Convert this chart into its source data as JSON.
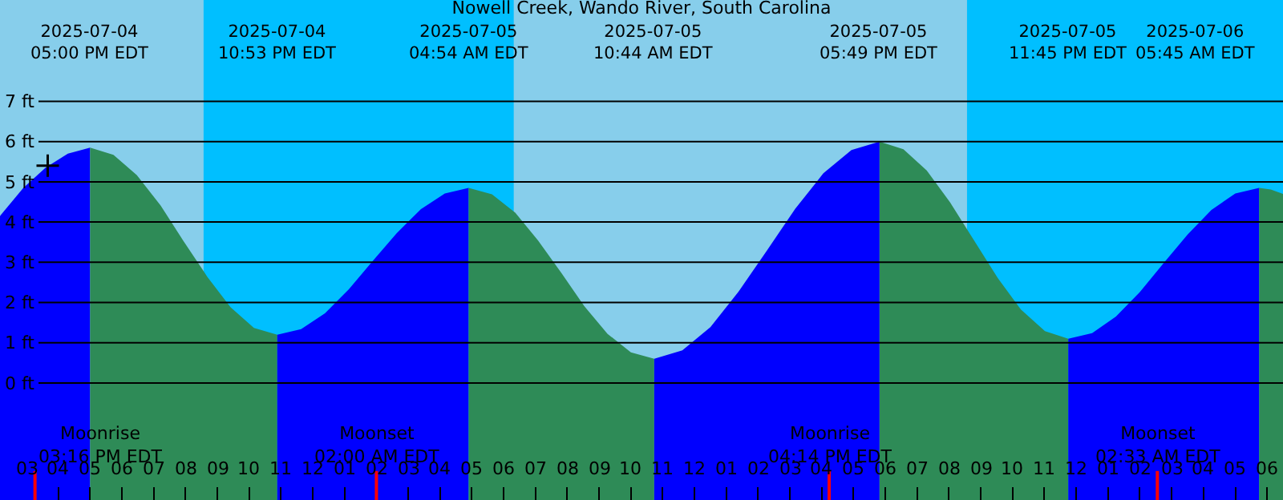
{
  "chart_data": {
    "type": "area",
    "title": "Nowell Creek, Wando River, South Carolina",
    "xlim": [
      "2025-07-04T14:10",
      "2025-07-06T06:30"
    ],
    "ylim": [
      -2.91,
      9.52
    ],
    "xticks": [
      {
        "value": "2025-07-04T15:00",
        "label": "03"
      },
      {
        "value": "2025-07-04T16:00",
        "label": "04"
      },
      {
        "value": "2025-07-04T17:00",
        "label": "05"
      },
      {
        "value": "2025-07-04T18:00",
        "label": "06"
      },
      {
        "value": "2025-07-04T19:00",
        "label": "07"
      },
      {
        "value": "2025-07-04T20:00",
        "label": "08"
      },
      {
        "value": "2025-07-04T21:00",
        "label": "09"
      },
      {
        "value": "2025-07-04T22:00",
        "label": "10"
      },
      {
        "value": "2025-07-04T23:00",
        "label": "11"
      },
      {
        "value": "2025-07-05T00:00",
        "label": "12"
      },
      {
        "value": "2025-07-05T01:00",
        "label": "01"
      },
      {
        "value": "2025-07-05T02:00",
        "label": "02"
      },
      {
        "value": "2025-07-05T03:00",
        "label": "03"
      },
      {
        "value": "2025-07-05T04:00",
        "label": "04"
      },
      {
        "value": "2025-07-05T05:00",
        "label": "05"
      },
      {
        "value": "2025-07-05T06:00",
        "label": "06"
      },
      {
        "value": "2025-07-05T07:00",
        "label": "07"
      },
      {
        "value": "2025-07-05T08:00",
        "label": "08"
      },
      {
        "value": "2025-07-05T09:00",
        "label": "09"
      },
      {
        "value": "2025-07-05T10:00",
        "label": "10"
      },
      {
        "value": "2025-07-05T11:00",
        "label": "11"
      },
      {
        "value": "2025-07-05T12:00",
        "label": "12"
      },
      {
        "value": "2025-07-05T13:00",
        "label": "01"
      },
      {
        "value": "2025-07-05T14:00",
        "label": "02"
      },
      {
        "value": "2025-07-05T15:00",
        "label": "03"
      },
      {
        "value": "2025-07-05T16:00",
        "label": "04"
      },
      {
        "value": "2025-07-05T17:00",
        "label": "05"
      },
      {
        "value": "2025-07-05T18:00",
        "label": "06"
      },
      {
        "value": "2025-07-05T19:00",
        "label": "07"
      },
      {
        "value": "2025-07-05T20:00",
        "label": "08"
      },
      {
        "value": "2025-07-05T21:00",
        "label": "09"
      },
      {
        "value": "2025-07-05T22:00",
        "label": "10"
      },
      {
        "value": "2025-07-05T23:00",
        "label": "11"
      },
      {
        "value": "2025-07-06T00:00",
        "label": "12"
      },
      {
        "value": "2025-07-06T01:00",
        "label": "01"
      },
      {
        "value": "2025-07-06T02:00",
        "label": "02"
      },
      {
        "value": "2025-07-06T03:00",
        "label": "03"
      },
      {
        "value": "2025-07-06T04:00",
        "label": "04"
      },
      {
        "value": "2025-07-06T05:00",
        "label": "05"
      },
      {
        "value": "2025-07-06T06:00",
        "label": "06"
      }
    ],
    "yticks": [
      {
        "value": 0,
        "label": "0 ft"
      },
      {
        "value": 1,
        "label": "1 ft"
      },
      {
        "value": 2,
        "label": "2 ft"
      },
      {
        "value": 3,
        "label": "3 ft"
      },
      {
        "value": 4,
        "label": "4 ft"
      },
      {
        "value": 5,
        "label": "5 ft"
      },
      {
        "value": 6,
        "label": "6 ft"
      },
      {
        "value": 7,
        "label": "7 ft"
      }
    ],
    "grid": "y",
    "bands": [
      {
        "axis": "x",
        "from": "2025-07-04T20:34",
        "to": "2025-07-05T06:19",
        "color": "#00bfff"
      },
      {
        "axis": "x",
        "from": "2025-07-05T20:34",
        "to": "2025-07-06T06:30",
        "color": "#00bfff"
      }
    ],
    "ref_lines": [
      {
        "axis": "x",
        "value": "2025-07-04T15:16",
        "label": "Moonrise\n03:16 PM EDT",
        "color": "#ff0000"
      },
      {
        "axis": "x",
        "value": "2025-07-05T02:00",
        "label": "Moonset\n02:00 AM EDT",
        "color": "#ff0000"
      },
      {
        "axis": "x",
        "value": "2025-07-05T16:14",
        "label": "Moonrise\n04:14 PM EDT",
        "color": "#ff0000"
      },
      {
        "axis": "x",
        "value": "2025-07-06T02:33",
        "label": "Moonset\n02:33 AM EDT",
        "color": "#ff0000"
      }
    ],
    "series": [
      {
        "color": "#0000ff",
        "x": [
          "2025-07-04T14:10",
          "2025-07-04T14:54",
          "2025-07-04T15:36",
          "2025-07-04T16:18",
          "2025-07-04T17:00"
        ],
        "values": [
          4.15,
          4.85,
          5.35,
          5.7,
          5.85
        ]
      },
      {
        "color": "#2e8b57",
        "x": [
          "2025-07-04T17:00",
          "2025-07-04T17:44",
          "2025-07-04T18:28",
          "2025-07-04T19:13",
          "2025-07-04T19:56",
          "2025-07-04T20:41",
          "2025-07-04T21:25",
          "2025-07-04T22:09",
          "2025-07-04T22:53"
        ],
        "values": [
          5.85,
          5.67,
          5.17,
          4.41,
          3.53,
          2.64,
          1.88,
          1.37,
          1.2
        ]
      },
      {
        "color": "#0000ff",
        "x": [
          "2025-07-04T22:53",
          "2025-07-04T23:38",
          "2025-07-05T00:23",
          "2025-07-05T01:08",
          "2025-07-05T01:53",
          "2025-07-05T02:38",
          "2025-07-05T03:24",
          "2025-07-05T04:09",
          "2025-07-05T04:54"
        ],
        "values": [
          1.2,
          1.34,
          1.73,
          2.33,
          3.03,
          3.72,
          4.32,
          4.71,
          4.85
        ]
      },
      {
        "color": "#2e8b57",
        "x": [
          "2025-07-05T04:54",
          "2025-07-05T05:38",
          "2025-07-05T06:22",
          "2025-07-05T07:05",
          "2025-07-05T07:49",
          "2025-07-05T08:32",
          "2025-07-05T09:16",
          "2025-07-05T10:00",
          "2025-07-05T10:44"
        ],
        "values": [
          4.85,
          4.69,
          4.23,
          3.54,
          2.73,
          1.91,
          1.22,
          0.76,
          0.6
        ]
      },
      {
        "color": "#0000ff",
        "x": [
          "2025-07-05T10:44",
          "2025-07-05T11:37",
          "2025-07-05T12:30",
          "2025-07-05T13:23",
          "2025-07-05T14:17",
          "2025-07-05T15:10",
          "2025-07-05T16:03",
          "2025-07-05T16:56",
          "2025-07-05T17:49"
        ],
        "values": [
          0.6,
          0.81,
          1.39,
          2.27,
          3.3,
          4.33,
          5.21,
          5.79,
          6.0
        ]
      },
      {
        "color": "#2e8b57",
        "x": [
          "2025-07-05T17:49",
          "2025-07-05T18:34",
          "2025-07-05T19:18",
          "2025-07-05T20:02",
          "2025-07-05T20:47",
          "2025-07-05T21:32",
          "2025-07-05T22:16",
          "2025-07-05T23:01",
          "2025-07-05T23:45"
        ],
        "values": [
          6.0,
          5.81,
          5.28,
          4.49,
          3.55,
          2.61,
          1.82,
          1.29,
          1.1
        ]
      },
      {
        "color": "#0000ff",
        "x": [
          "2025-07-05T23:45",
          "2025-07-06T00:30",
          "2025-07-06T01:15",
          "2025-07-06T02:00",
          "2025-07-06T02:45",
          "2025-07-06T03:30",
          "2025-07-06T04:15",
          "2025-07-06T05:00",
          "2025-07-06T05:45"
        ],
        "values": [
          1.1,
          1.24,
          1.65,
          2.26,
          2.98,
          3.69,
          4.3,
          4.71,
          4.85
        ]
      },
      {
        "color": "#2e8b57",
        "x": [
          "2025-07-06T05:45",
          "2025-07-06T06:07",
          "2025-07-06T06:30"
        ],
        "values": [
          4.85,
          4.81,
          4.7
        ]
      },
      {
        "type": "scatter",
        "marker": "cross",
        "color": "#000000",
        "x": [
          "2025-07-04T15:40"
        ],
        "values": [
          5.4
        ]
      }
    ],
    "annotations": [
      "2025-07-04\n05:00 PM EDT",
      "2025-07-04\n10:53 PM EDT",
      "2025-07-05\n04:54 AM EDT",
      "2025-07-05\n10:44 AM EDT",
      "2025-07-05\n05:49 PM EDT",
      "2025-07-05\n11:45 PM EDT",
      "2025-07-06\n05:45 AM EDT"
    ]
  }
}
